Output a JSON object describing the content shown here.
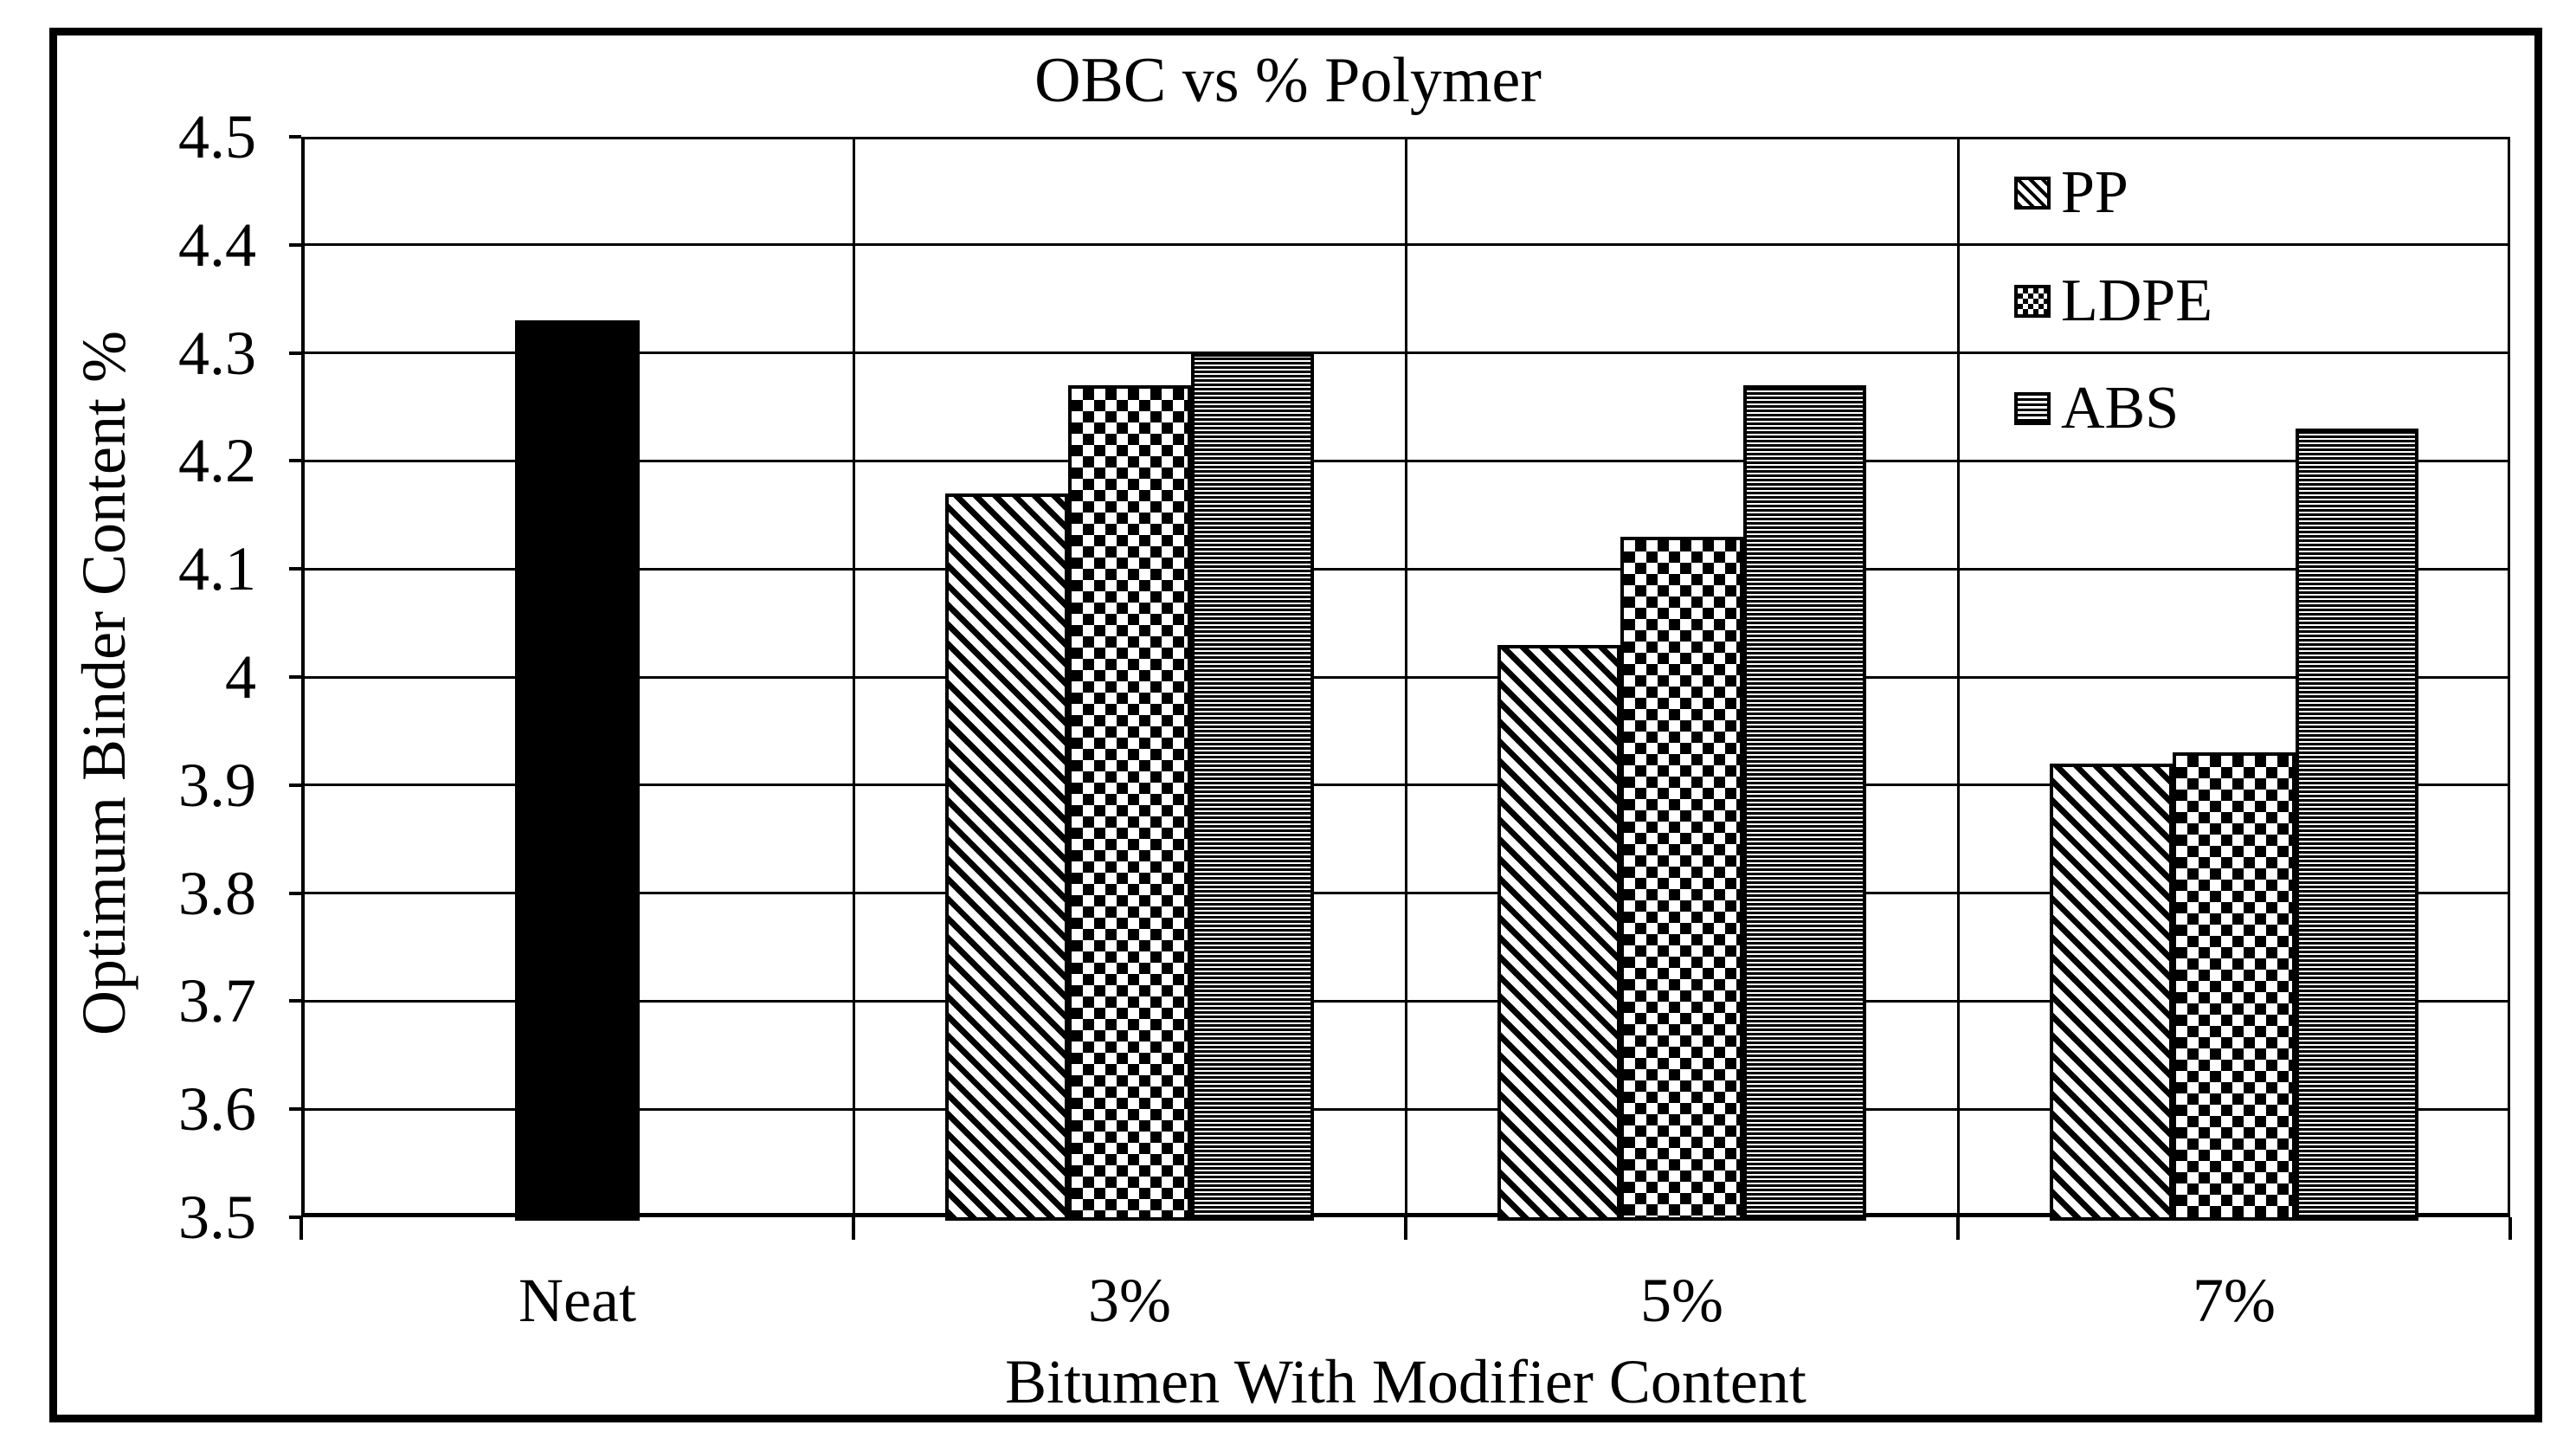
{
  "chart_data": {
    "type": "bar",
    "title": "OBC vs % Polymer",
    "xlabel": "Bitumen With Modifier Content",
    "ylabel": "Optimum Binder Content %",
    "categories": [
      "Neat",
      "3%",
      "5%",
      "7%"
    ],
    "series": [
      {
        "name": "Neat",
        "pattern": "solid",
        "color": "#000000",
        "in_legend": false,
        "values": [
          4.33,
          null,
          null,
          null
        ]
      },
      {
        "name": "PP",
        "pattern": "diagonal-stripes",
        "in_legend": true,
        "values": [
          null,
          4.17,
          4.03,
          3.92
        ]
      },
      {
        "name": "LDPE",
        "pattern": "checkerboard",
        "in_legend": true,
        "values": [
          null,
          4.27,
          4.13,
          3.93
        ]
      },
      {
        "name": "ABS",
        "pattern": "horizontal-stripes",
        "in_legend": true,
        "values": [
          null,
          4.3,
          4.27,
          4.23
        ]
      }
    ],
    "y_axis": {
      "min": 3.5,
      "max": 4.5,
      "step": 0.1,
      "tick_labels": [
        "4.5",
        "4.4",
        "4.3",
        "4.2",
        "4.1",
        "4",
        "3.9",
        "3.8",
        "3.7",
        "3.6",
        "3.5"
      ]
    },
    "x_axis": {
      "tick_labels": [
        "Neat",
        "3%",
        "5%",
        "7%"
      ]
    },
    "legend": {
      "position": "top-right",
      "entries": [
        "PP",
        "LDPE",
        "ABS"
      ]
    },
    "grid": {
      "horizontal": true,
      "vertical_category_separators": true
    },
    "colors": {
      "foreground": "#000000",
      "background": "#ffffff"
    }
  }
}
